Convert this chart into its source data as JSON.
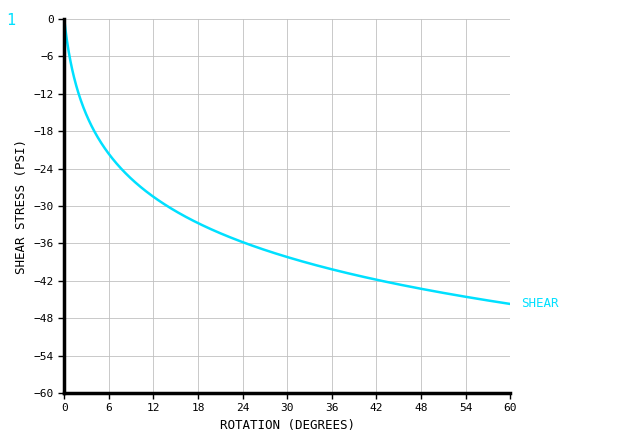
{
  "background_color": "#ffffff",
  "plot_bg_color": "#ffffff",
  "grid_color": "#c0c0c0",
  "curve_color": "#00e0ff",
  "curve_label_color": "#00e0ff",
  "corner_label_color": "#00e0ff",
  "axis_label_color": "#000000",
  "tick_label_color": "#000000",
  "spine_color": "#000000",
  "xlabel": "ROTATION (DEGREES)",
  "ylabel": "SHEAR STRESS (PSI)",
  "curve_label": "SHEAR",
  "corner_label": "1",
  "xlim": [
    0,
    60
  ],
  "ylim": [
    -60,
    0
  ],
  "xticks": [
    0,
    6,
    12,
    18,
    24,
    30,
    36,
    42,
    48,
    54,
    60
  ],
  "yticks": [
    0,
    -6,
    -12,
    -18,
    -24,
    -30,
    -36,
    -42,
    -48,
    -54,
    -60
  ],
  "log_k": 11.12,
  "curve_linewidth": 1.8,
  "font_size_ticks": 8,
  "font_size_label": 9,
  "font_size_corner": 11
}
